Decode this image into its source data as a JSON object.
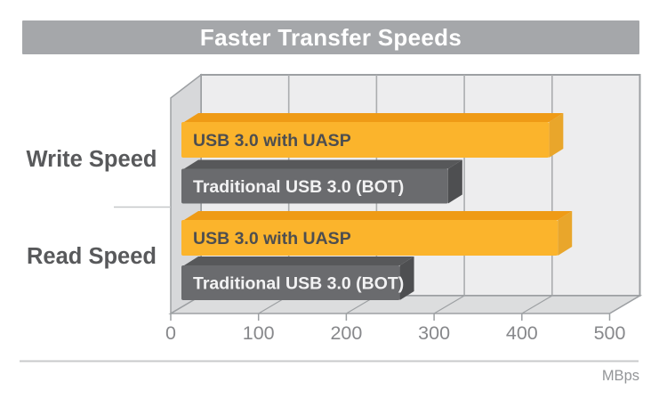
{
  "title": "Faster Transfer Speeds",
  "chart_data": {
    "type": "bar",
    "orientation": "horizontal",
    "title": "Faster Transfer Speeds",
    "categories": [
      "Write Speed",
      "Read Speed"
    ],
    "series": [
      {
        "name": "USB 3.0 with UASP",
        "values": [
          435,
          445
        ]
      },
      {
        "name": "Traditional USB 3.0 (BOT)",
        "values": [
          320,
          265
        ]
      }
    ],
    "xlim": [
      0,
      500
    ],
    "ticks": [
      "0",
      "100",
      "200",
      "300",
      "400",
      "500"
    ],
    "unit_label": "MBps",
    "grid": true,
    "legend_position": "labels-inside-bars"
  },
  "colors": {
    "title_bar_bg": "#a5a7aa",
    "title_text": "#ffffff",
    "wall": "#ededee",
    "left_wall": "#d7d8da",
    "floor": "#dcddde",
    "frame_border": "#9da0a3",
    "gridline": "#abadaf",
    "bar_uasp_face": "#fbb42c",
    "bar_uasp_top": "#ef9b16",
    "bar_uasp_side": "#e9a62b",
    "bar_uasp_text": "#4d4e50",
    "bar_bot_face": "#6a6b6e",
    "bar_bot_top": "#57585a",
    "bar_bot_side": "#4e4f51",
    "bar_bot_text": "#f2f2f3",
    "category_text": "#58595b",
    "tick_text": "#87888b",
    "unit_text": "#939598",
    "divider": "#c6c7c9",
    "bottom_rule": "#c9cacb"
  }
}
